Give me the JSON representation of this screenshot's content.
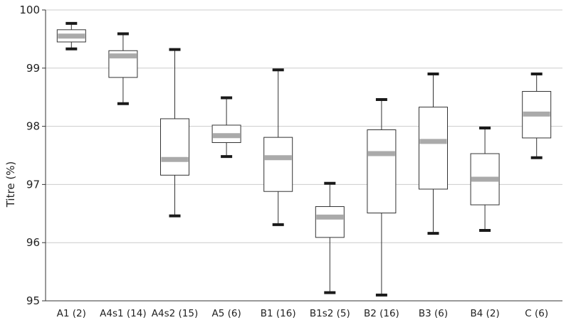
{
  "chart_data": {
    "type": "box",
    "ylabel": "Titre (%)",
    "xlabel": "",
    "ylim": [
      95,
      100
    ],
    "yticks": [
      95,
      96,
      97,
      98,
      99,
      100
    ],
    "grid": true,
    "categories": [
      "A1 (2)",
      "A4s1 (14)",
      "A4s2 (15)",
      "A5 (6)",
      "B1 (16)",
      "B1s2 (5)",
      "B2 (16)",
      "B3 (6)",
      "B4 (2)",
      "C (6)"
    ],
    "boxes": [
      {
        "min": 99.33,
        "q1": 99.45,
        "median": 99.55,
        "q3": 99.66,
        "max": 99.77
      },
      {
        "min": 98.39,
        "q1": 98.84,
        "median": 99.21,
        "q3": 99.3,
        "max": 99.59
      },
      {
        "min": 96.46,
        "q1": 97.16,
        "median": 97.43,
        "q3": 98.13,
        "max": 99.32
      },
      {
        "min": 97.48,
        "q1": 97.72,
        "median": 97.84,
        "q3": 98.02,
        "max": 98.49
      },
      {
        "min": 96.31,
        "q1": 96.88,
        "median": 97.46,
        "q3": 97.81,
        "max": 98.97
      },
      {
        "min": 95.14,
        "q1": 96.09,
        "median": 96.44,
        "q3": 96.62,
        "max": 97.02
      },
      {
        "min": 95.1,
        "q1": 96.51,
        "median": 97.53,
        "q3": 97.94,
        "max": 98.46
      },
      {
        "min": 96.16,
        "q1": 96.92,
        "median": 97.74,
        "q3": 98.33,
        "max": 98.9
      },
      {
        "min": 96.21,
        "q1": 96.65,
        "median": 97.09,
        "q3": 97.53,
        "max": 97.97
      },
      {
        "min": 97.46,
        "q1": 97.8,
        "median": 98.21,
        "q3": 98.6,
        "max": 98.9
      }
    ],
    "colors": {
      "median": "#aaaaaa",
      "whisker_cap": "#1a1a1a",
      "box_stroke": "#333333",
      "grid": "#cccccc",
      "axis": "#333333"
    }
  }
}
